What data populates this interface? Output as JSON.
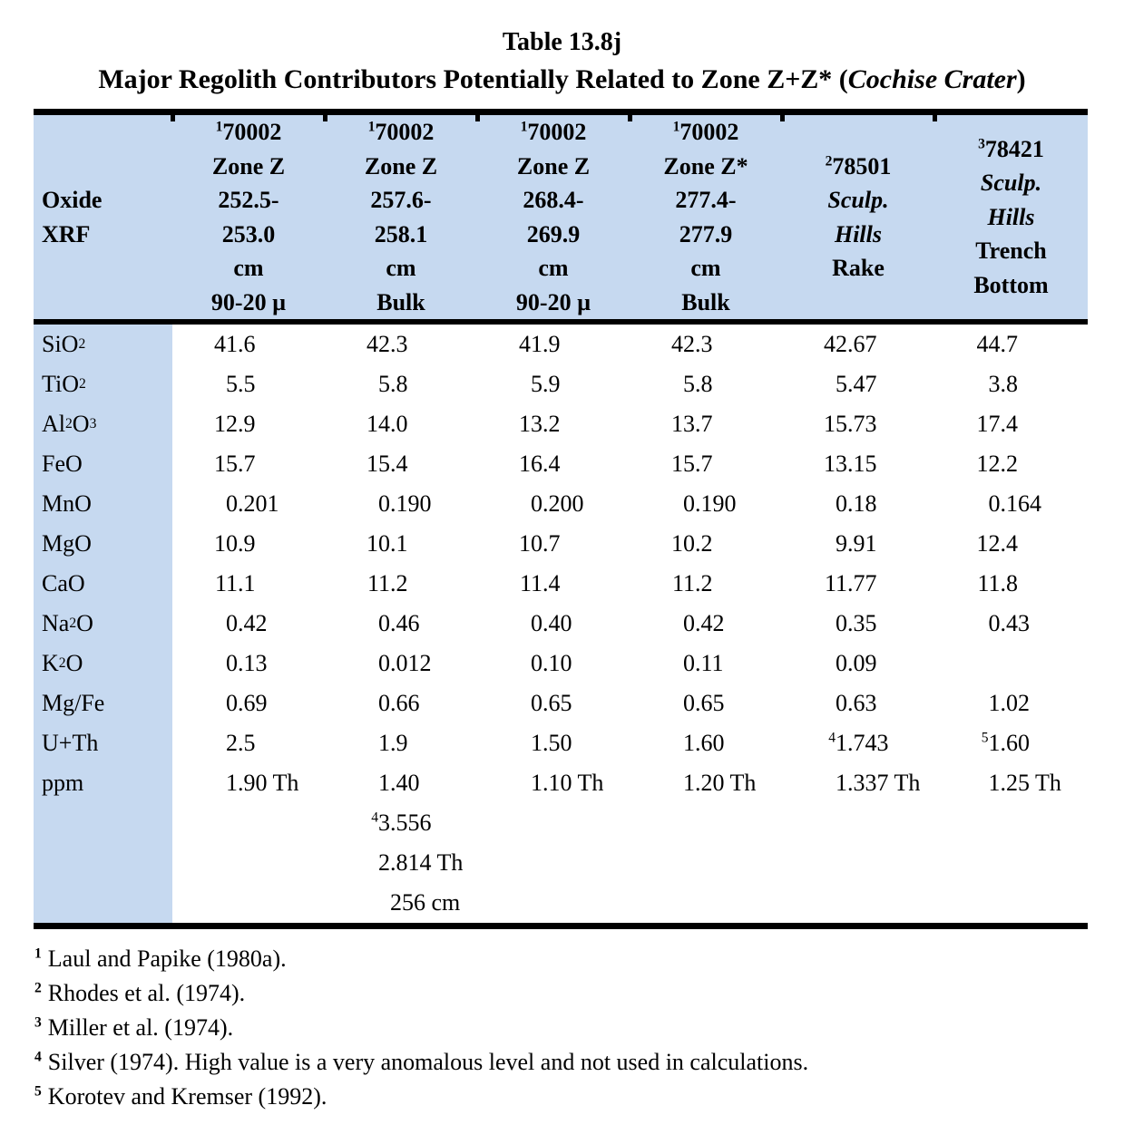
{
  "title": {
    "line1": "Table 13.8j",
    "line2": [
      {
        "t": "Major Regolith Contributors Potentially Related to Zone Z+Z* ("
      },
      {
        "t": "Cochise Crater",
        "italic": true
      },
      {
        "t": ")"
      }
    ]
  },
  "colors": {
    "header_bg": "#c6d9f0",
    "text": "#000000",
    "page_bg": "#ffffff"
  },
  "table": {
    "corner": [
      [
        {
          "t": "Oxide"
        }
      ],
      [
        {
          "t": "XRF"
        }
      ]
    ],
    "columns": [
      {
        "lines": [
          [
            {
              "t": "1",
              "sup": true
            },
            {
              "t": "70002"
            }
          ],
          [
            {
              "t": "Zone Z"
            }
          ],
          [
            {
              "t": "252.5-"
            }
          ],
          [
            {
              "t": "253.0"
            }
          ],
          [
            {
              "t": "cm"
            }
          ],
          [
            {
              "t": "90-20 µ"
            }
          ]
        ]
      },
      {
        "lines": [
          [
            {
              "t": "1",
              "sup": true
            },
            {
              "t": "70002"
            }
          ],
          [
            {
              "t": "Zone Z"
            }
          ],
          [
            {
              "t": "257.6-"
            }
          ],
          [
            {
              "t": "258.1"
            }
          ],
          [
            {
              "t": "cm"
            }
          ],
          [
            {
              "t": "Bulk"
            }
          ]
        ]
      },
      {
        "lines": [
          [
            {
              "t": "1",
              "sup": true
            },
            {
              "t": "70002"
            }
          ],
          [
            {
              "t": "Zone Z"
            }
          ],
          [
            {
              "t": "268.4-"
            }
          ],
          [
            {
              "t": "269.9"
            }
          ],
          [
            {
              "t": "cm"
            }
          ],
          [
            {
              "t": "90-20 µ"
            }
          ]
        ]
      },
      {
        "lines": [
          [
            {
              "t": "1",
              "sup": true
            },
            {
              "t": "70002"
            }
          ],
          [
            {
              "t": "Zone Z*"
            }
          ],
          [
            {
              "t": "277.4-"
            }
          ],
          [
            {
              "t": "277.9"
            }
          ],
          [
            {
              "t": "cm"
            }
          ],
          [
            {
              "t": "Bulk"
            }
          ]
        ]
      },
      {
        "lines": [
          [
            {
              "t": "2",
              "sup": true
            },
            {
              "t": "78501"
            }
          ],
          [
            {
              "t": "Sculp.",
              "italic": true
            }
          ],
          [
            {
              "t": "Hills",
              "italic": true
            }
          ],
          [
            {
              "t": "Rake"
            }
          ]
        ]
      },
      {
        "lines": [
          [
            {
              "t": "3",
              "sup": true
            },
            {
              "t": "78421"
            }
          ],
          [
            {
              "t": "Sculp.",
              "italic": true
            }
          ],
          [
            {
              "t": "Hills",
              "italic": true
            }
          ],
          [
            {
              "t": "Trench"
            }
          ],
          [
            {
              "t": "Bottom"
            }
          ]
        ]
      }
    ],
    "rows": [
      {
        "label": [
          {
            "t": "SiO"
          },
          {
            "t": "2",
            "sub": true
          }
        ],
        "values": [
          "41.6",
          "42.3",
          "41.9",
          "42.3",
          "42.67",
          "44.7"
        ]
      },
      {
        "label": [
          {
            "t": "TiO"
          },
          {
            "t": "2",
            "sub": true
          }
        ],
        "values": [
          "5.5",
          "5.8",
          "5.9",
          "5.8",
          "5.47",
          "3.8"
        ]
      },
      {
        "label": [
          {
            "t": "Al"
          },
          {
            "t": "2",
            "sub": true
          },
          {
            "t": "O"
          },
          {
            "t": "3",
            "sub": true
          }
        ],
        "values": [
          "12.9",
          "14.0",
          "13.2",
          "13.7",
          "15.73",
          "17.4"
        ]
      },
      {
        "label": [
          {
            "t": "FeO"
          }
        ],
        "values": [
          "15.7",
          "15.4",
          "16.4",
          "15.7",
          "13.15",
          "12.2"
        ]
      },
      {
        "label": [
          {
            "t": "MnO"
          }
        ],
        "values": [
          "0.201",
          "0.190",
          "0.200",
          "0.190",
          "0.18",
          "0.164"
        ]
      },
      {
        "label": [
          {
            "t": "MgO"
          }
        ],
        "values": [
          "10.9",
          "10.1",
          "10.7",
          "10.2",
          "9.91",
          "12.4"
        ]
      },
      {
        "label": [
          {
            "t": "CaO"
          }
        ],
        "values": [
          "11.1",
          "11.2",
          "11.4",
          "11.2",
          "11.77",
          "11.8"
        ]
      },
      {
        "label": [
          {
            "t": "Na"
          },
          {
            "t": "2",
            "sub": true
          },
          {
            "t": "O"
          }
        ],
        "values": [
          "0.42",
          "0.46",
          "0.40",
          "0.42",
          "0.35",
          "0.43"
        ]
      },
      {
        "label": [
          {
            "t": "K"
          },
          {
            "t": "2",
            "sub": true
          },
          {
            "t": "O"
          }
        ],
        "values": [
          "0.13",
          "0.012",
          "0.10",
          "0.11",
          "0.09",
          ""
        ]
      },
      {
        "label": [
          {
            "t": "Mg/Fe"
          }
        ],
        "values": [
          "0.69",
          "0.66",
          "0.65",
          "0.65",
          "0.63",
          "1.02"
        ]
      },
      {
        "label": [
          {
            "t": "U+Th"
          }
        ],
        "values": [
          "2.5",
          "1.9",
          "1.50",
          "1.60",
          {
            "sup": "4",
            "v": "1.743"
          },
          {
            "sup": "5",
            "v": "1.60"
          }
        ]
      },
      {
        "label": [
          {
            "t": "ppm"
          }
        ],
        "values": [
          "1.90 Th",
          "1.40",
          "1.10 Th",
          "1.20 Th",
          "1.337 Th",
          "1.25 Th"
        ]
      },
      {
        "label": [],
        "values": [
          "",
          {
            "sup": "4",
            "v": "3.556"
          },
          "",
          "",
          "",
          ""
        ]
      },
      {
        "label": [],
        "values": [
          "",
          "2.814 Th",
          "",
          "",
          "",
          ""
        ]
      },
      {
        "label": [],
        "values": [
          "",
          "256 cm",
          "",
          "",
          "",
          ""
        ]
      }
    ]
  },
  "footnotes": [
    {
      "marker": "1",
      "text": "Laul and Papike (1980a)."
    },
    {
      "marker": "2",
      "text": "Rhodes et al. (1974)."
    },
    {
      "marker": "3",
      "text": "Miller et al. (1974)."
    },
    {
      "marker": "4",
      "text": "Silver (1974). High value is a very anomalous level and not used in calculations."
    },
    {
      "marker": "5",
      "text": "Korotev and Kremser (1992)."
    }
  ]
}
